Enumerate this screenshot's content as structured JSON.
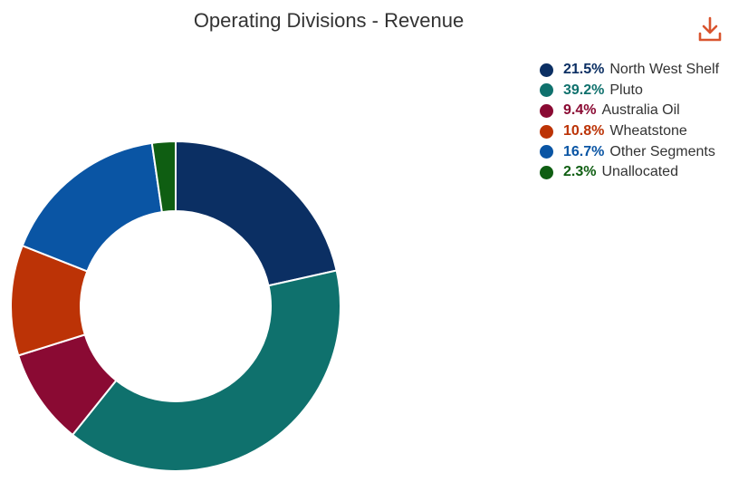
{
  "chart_data": {
    "type": "pie",
    "title": "Operating Divisions - Revenue",
    "donut": true,
    "legend_position": "top-right",
    "slices": [
      {
        "label": "North West Shelf",
        "value": 21.5,
        "display": "21.5%",
        "color": "#0b2f63"
      },
      {
        "label": "Pluto",
        "value": 39.2,
        "display": "39.2%",
        "color": "#0f716d"
      },
      {
        "label": "Australia Oil",
        "value": 9.4,
        "display": "9.4%",
        "color": "#8a0a33"
      },
      {
        "label": "Wheatstone",
        "value": 10.8,
        "display": "10.8%",
        "color": "#bc3306"
      },
      {
        "label": "Other Segments",
        "value": 16.7,
        "display": "16.7%",
        "color": "#0a55a4"
      },
      {
        "label": "Unallocated",
        "value": 2.3,
        "display": "2.3%",
        "color": "#0f5e12"
      }
    ]
  },
  "toolbar": {
    "download_icon": "download-icon",
    "download_color": "#d9542e"
  }
}
